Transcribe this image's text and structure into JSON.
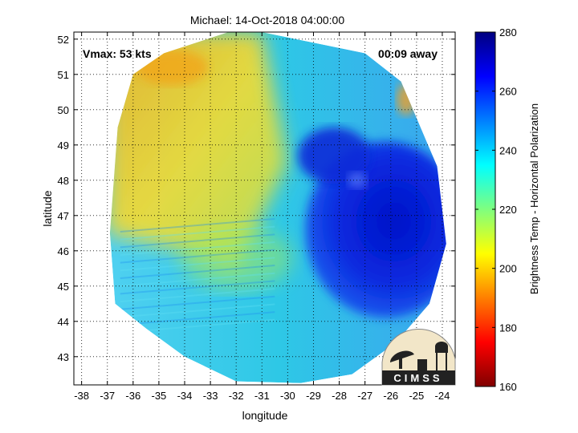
{
  "chart_data": {
    "type": "heatmap",
    "title": "Michael: 14-Oct-2018 04:00:00",
    "xlabel": "longitude",
    "ylabel": "latitude",
    "xlim": [
      -38.3,
      -23.5
    ],
    "ylim": [
      42.2,
      52.2
    ],
    "x_ticks": [
      -38,
      -37,
      -36,
      -35,
      -34,
      -33,
      -32,
      -31,
      -30,
      -29,
      -28,
      -27,
      -26,
      -25,
      -24
    ],
    "y_ticks": [
      43,
      44,
      45,
      46,
      47,
      48,
      49,
      50,
      51,
      52
    ],
    "grid": "dotted",
    "annotations": {
      "vmax": "Vmax: 53 kts",
      "time_offset": "00:09 away"
    },
    "colorbar": {
      "label": "Brightness Temp - Horizontal Polarization",
      "range": [
        160,
        280
      ],
      "ticks": [
        160,
        180,
        200,
        220,
        240,
        260,
        280
      ],
      "colormap": "jet"
    },
    "field_regions": [
      {
        "desc": "warm band NW",
        "lon": [
          -35,
          -31
        ],
        "lat": [
          50,
          52
        ],
        "value": 200
      },
      {
        "desc": "warm band W",
        "lon": [
          -36,
          -33
        ],
        "lat": [
          47,
          50
        ],
        "value": 220
      },
      {
        "desc": "cold cloud core",
        "lon": [
          -29,
          -24
        ],
        "lat": [
          44,
          49
        ],
        "value": 268
      },
      {
        "desc": "background",
        "lon": [
          -37,
          -24
        ],
        "lat": [
          42.5,
          52
        ],
        "value": 240
      }
    ]
  },
  "logo": {
    "name": "cimss-logo",
    "text": "CIMSS",
    "colors": {
      "fill": "#222222",
      "background": "#f2e6c8"
    }
  },
  "colors": {
    "axis": "#000000",
    "grid": "#000000",
    "background": "#ffffff"
  }
}
